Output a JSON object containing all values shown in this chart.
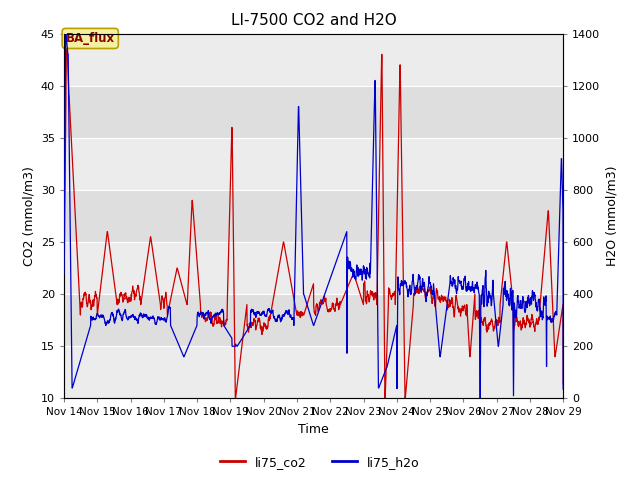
{
  "title": "LI-7500 CO2 and H2O",
  "xlabel": "Time",
  "ylabel_left": "CO2 (mmol/m3)",
  "ylabel_right": "H2O (mmol/m3)",
  "ylim_left": [
    10,
    45
  ],
  "ylim_right": [
    0,
    1400
  ],
  "yticks_left": [
    10,
    15,
    20,
    25,
    30,
    35,
    40,
    45
  ],
  "yticks_right": [
    0,
    200,
    400,
    600,
    800,
    1000,
    1200,
    1400
  ],
  "xtick_labels": [
    "Nov 14",
    "Nov 15",
    "Nov 16",
    "Nov 17",
    "Nov 18",
    "Nov 19",
    "Nov 20",
    "Nov 21",
    "Nov 22",
    "Nov 23",
    "Nov 24",
    "Nov 25",
    "Nov 26",
    "Nov 27",
    "Nov 28",
    "Nov 29"
  ],
  "annotation_text": "BA_flux",
  "co2_color": "#cc0000",
  "h2o_color": "#0000cc",
  "legend_co2": "li75_co2",
  "legend_h2o": "li75_h2o",
  "title_fontsize": 11,
  "axis_label_fontsize": 9,
  "tick_fontsize": 8,
  "legend_fontsize": 9,
  "band_light": "#ececec",
  "band_dark": "#dedede",
  "bg_white": "#ffffff"
}
